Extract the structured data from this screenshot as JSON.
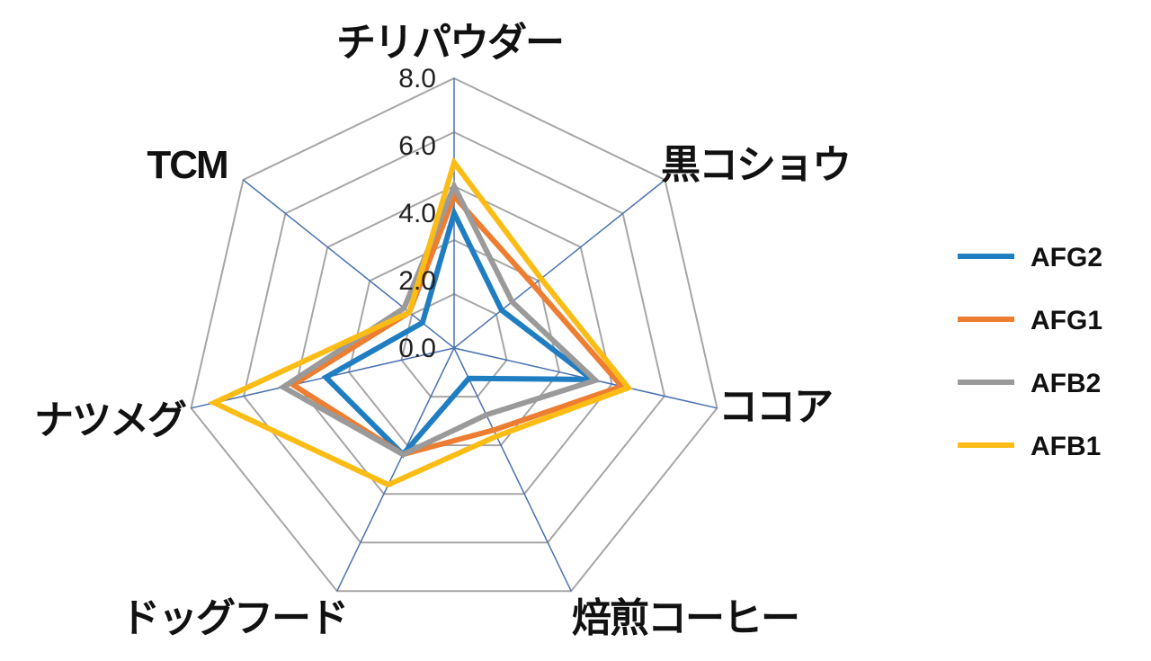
{
  "chart_data": {
    "type": "radar",
    "axes": [
      "チリパウダー",
      "黒コショウ",
      "ココア",
      "焙煎コーヒー",
      "ドッグフード",
      "ナツメグ",
      "TCM"
    ],
    "ticks": [
      "0.0",
      "2.0",
      "4.0",
      "6.0",
      "8.0"
    ],
    "range": [
      0,
      8
    ],
    "grid_rings": 5,
    "legend_position": "right",
    "series": [
      {
        "name": "AFG2",
        "color": "#1f7dc1",
        "values": [
          4.0,
          1.8,
          4.2,
          1.0,
          3.5,
          3.9,
          1.2
        ]
      },
      {
        "name": "AFG1",
        "color": "#ed7d31",
        "values": [
          4.5,
          3.0,
          5.1,
          2.7,
          3.5,
          4.9,
          1.7
        ]
      },
      {
        "name": "AFB2",
        "color": "#9a9a9a",
        "values": [
          4.8,
          2.2,
          4.3,
          2.2,
          3.5,
          5.2,
          1.9
        ]
      },
      {
        "name": "AFB1",
        "color": "#fbbc15",
        "values": [
          5.5,
          3.3,
          5.3,
          2.9,
          4.5,
          7.3,
          1.7
        ]
      }
    ]
  }
}
